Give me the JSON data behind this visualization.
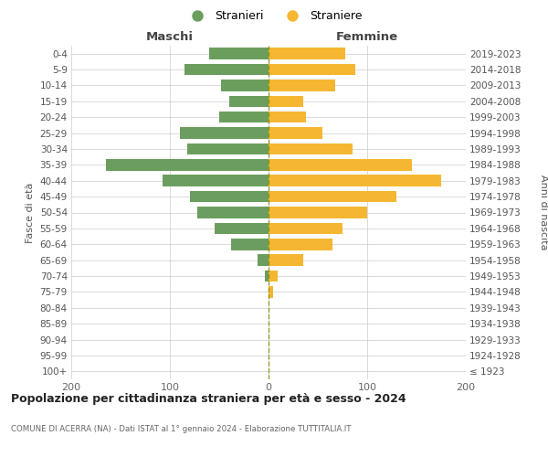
{
  "age_groups": [
    "100+",
    "95-99",
    "90-94",
    "85-89",
    "80-84",
    "75-79",
    "70-74",
    "65-69",
    "60-64",
    "55-59",
    "50-54",
    "45-49",
    "40-44",
    "35-39",
    "30-34",
    "25-29",
    "20-24",
    "15-19",
    "10-14",
    "5-9",
    "0-4"
  ],
  "birth_years": [
    "≤ 1923",
    "1924-1928",
    "1929-1933",
    "1934-1938",
    "1939-1943",
    "1944-1948",
    "1949-1953",
    "1954-1958",
    "1959-1963",
    "1964-1968",
    "1969-1973",
    "1974-1978",
    "1979-1983",
    "1984-1988",
    "1989-1993",
    "1994-1998",
    "1999-2003",
    "2004-2008",
    "2009-2013",
    "2014-2018",
    "2019-2023"
  ],
  "maschi": [
    0,
    0,
    0,
    0,
    0,
    0,
    4,
    11,
    38,
    55,
    72,
    80,
    107,
    165,
    82,
    90,
    50,
    40,
    48,
    85,
    60
  ],
  "femmine": [
    0,
    0,
    0,
    0,
    0,
    5,
    9,
    35,
    65,
    75,
    100,
    130,
    175,
    145,
    85,
    55,
    38,
    35,
    68,
    88,
    78
  ],
  "color_maschi": "#6b9e5e",
  "color_femmine": "#f5b731",
  "dashed_line_color": "#888800",
  "title": "Popolazione per cittadinanza straniera per età e sesso - 2024",
  "subtitle": "COMUNE DI ACERRA (NA) - Dati ISTAT al 1° gennaio 2024 - Elaborazione TUTTITALIA.IT",
  "ylabel_left": "Fasce di età",
  "ylabel_right": "Anni di nascita",
  "header_maschi": "Maschi",
  "header_femmine": "Femmine",
  "legend_maschi": "Stranieri",
  "legend_femmine": "Straniere",
  "xlim": 200,
  "bg_color": "#ffffff",
  "grid_color": "#cccccc",
  "bar_height": 0.72
}
